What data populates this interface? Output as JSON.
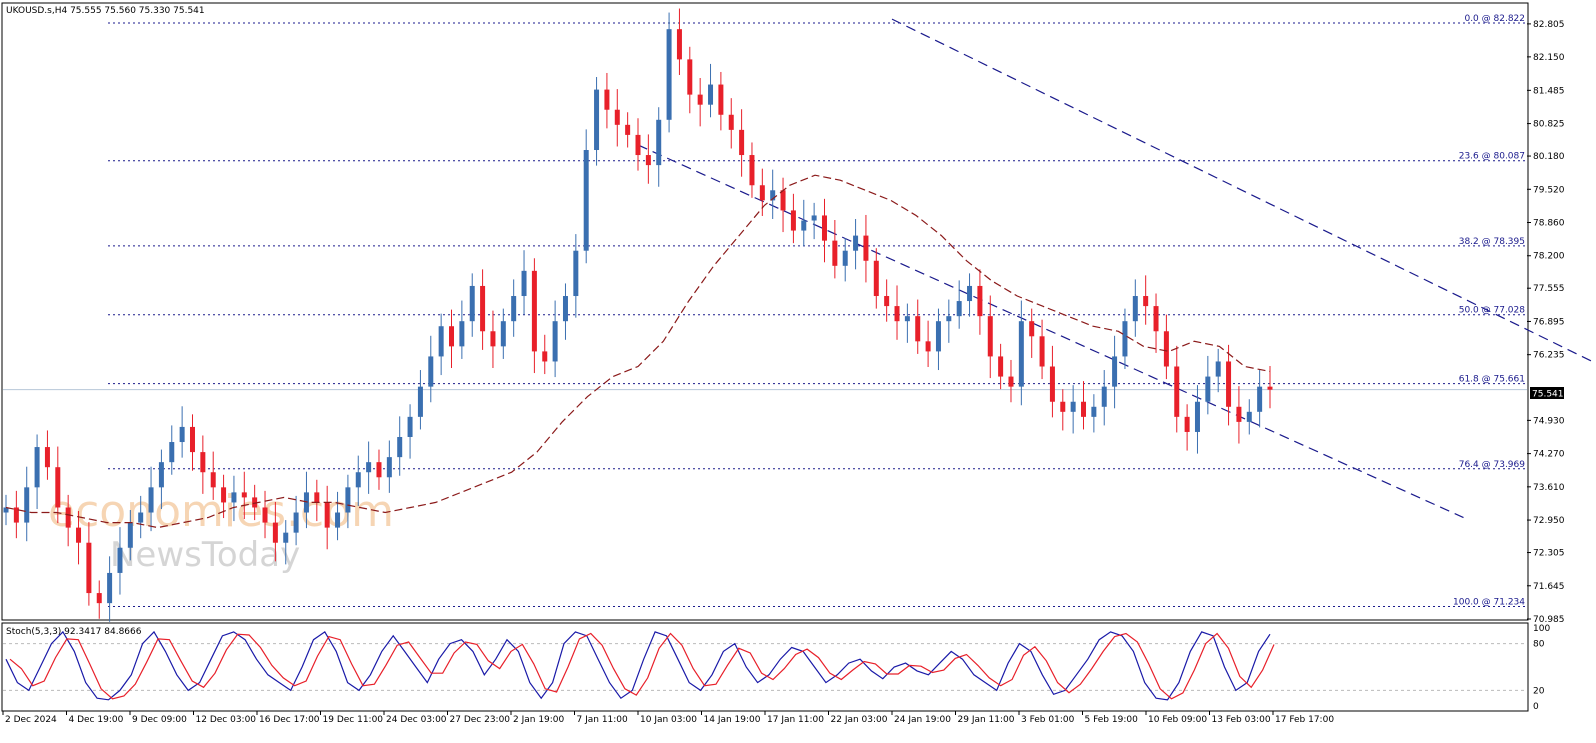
{
  "header": {
    "title": "UKOUSD.s,H4  75.555 75.560 75.330 75.541"
  },
  "stoch_label": "Stoch(5,3,3) 92.3417 84.8666",
  "current_price": "75.541",
  "watermark": {
    "line1": "economies.com",
    "line2": "NewsToday"
  },
  "colors": {
    "bull": "#3a6fb0",
    "bear": "#e8202a",
    "ma": "#8b1a1a",
    "channel": "#1a1a8c",
    "fib": "#1a1a8c",
    "stoch_main": "#1a1aa8",
    "stoch_signal": "#e8202a"
  },
  "chart_data": {
    "type": "candlestick",
    "symbol": "UKOUSD.s",
    "timeframe": "H4",
    "ohlc_last": {
      "open": 75.555,
      "high": 75.56,
      "low": 75.33,
      "close": 75.541
    },
    "y_ticks": [
      "82.805",
      "82.150",
      "81.485",
      "80.825",
      "80.180",
      "79.520",
      "78.860",
      "78.200",
      "77.555",
      "76.895",
      "76.235",
      "75.541",
      "74.930",
      "74.270",
      "73.610",
      "72.950",
      "72.305",
      "71.645",
      "70.985"
    ],
    "y_range": [
      70.985,
      83.2
    ],
    "x_ticks": [
      "2 Dec 2024",
      "4 Dec 19:00",
      "9 Dec 09:00",
      "12 Dec 03:00",
      "16 Dec 17:00",
      "19 Dec 11:00",
      "24 Dec 03:00",
      "27 Dec 23:00",
      "2 Jan 19:00",
      "7 Jan 11:00",
      "10 Jan 03:00",
      "14 Jan 19:00",
      "17 Jan 11:00",
      "22 Jan 03:00",
      "24 Jan 19:00",
      "29 Jan 11:00",
      "3 Feb 01:00",
      "5 Feb 19:00",
      "10 Feb 09:00",
      "13 Feb 03:00",
      "17 Feb 17:00"
    ],
    "fibonacci": [
      {
        "label": "0.0 @ 82.822",
        "value": 82.822
      },
      {
        "label": "23.6 @ 80.087",
        "value": 80.087
      },
      {
        "label": "38.2 @ 78.395",
        "value": 78.395
      },
      {
        "label": "50.0 @ 77.028",
        "value": 77.028
      },
      {
        "label": "61.8 @ 75.661",
        "value": 75.661
      },
      {
        "label": "76.4 @ 73.969",
        "value": 73.969
      },
      {
        "label": "100.0 @ 71.234",
        "value": 71.234
      }
    ],
    "price_path": [
      73.2,
      72.9,
      73.6,
      74.4,
      74.0,
      73.2,
      72.8,
      72.5,
      71.5,
      71.3,
      71.9,
      72.4,
      72.9,
      73.1,
      73.6,
      74.1,
      74.5,
      74.8,
      74.3,
      73.9,
      73.6,
      73.3,
      73.5,
      73.4,
      73.2,
      72.9,
      72.5,
      72.7,
      73.1,
      73.5,
      73.3,
      72.8,
      73.1,
      73.6,
      73.9,
      74.1,
      73.8,
      74.2,
      74.6,
      75.0,
      75.6,
      76.2,
      76.8,
      76.4,
      76.9,
      77.6,
      76.7,
      76.4,
      76.9,
      77.4,
      77.9,
      76.3,
      76.1,
      76.9,
      77.4,
      78.3,
      80.3,
      81.5,
      81.1,
      80.8,
      80.6,
      80.2,
      80.0,
      80.9,
      82.7,
      82.1,
      81.4,
      81.2,
      81.6,
      81.0,
      80.7,
      80.2,
      79.6,
      79.3,
      79.5,
      79.1,
      78.7,
      78.9,
      79.0,
      78.5,
      78.0,
      78.3,
      78.6,
      78.1,
      77.4,
      77.2,
      76.9,
      77.0,
      76.5,
      76.3,
      76.9,
      77.0,
      77.3,
      77.6,
      77.0,
      76.2,
      75.8,
      75.6,
      76.9,
      76.6,
      76.0,
      75.3,
      75.1,
      75.3,
      75.0,
      75.2,
      75.6,
      76.2,
      76.9,
      77.4,
      77.2,
      76.7,
      76.0,
      75.0,
      74.7,
      75.3,
      75.8,
      76.1,
      75.2,
      74.9,
      75.1,
      75.6,
      75.54
    ],
    "moving_average_path": [
      73.2,
      73.1,
      73.1,
      73.0,
      72.9,
      72.9,
      72.8,
      72.9,
      73.0,
      73.2,
      73.3,
      73.4,
      73.3,
      73.3,
      73.2,
      73.1,
      73.2,
      73.3,
      73.5,
      73.7,
      73.9,
      74.3,
      74.9,
      75.4,
      75.8,
      76.0,
      76.5,
      77.3,
      78.0,
      78.6,
      79.2,
      79.6,
      79.8,
      79.7,
      79.5,
      79.3,
      79.0,
      78.6,
      78.1,
      77.7,
      77.4,
      77.2,
      77.0,
      76.8,
      76.7,
      76.4,
      76.3,
      76.5,
      76.4,
      76.0,
      75.9
    ],
    "channel_upper": [
      [
        14,
        82.9
      ],
      [
        26,
        75.5
      ]
    ],
    "channel_lower": [
      [
        10,
        80.4
      ],
      [
        23,
        73.0
      ]
    ],
    "stochastic": {
      "k": 92.3417,
      "d": 84.8666,
      "levels": [
        0,
        20,
        80,
        100
      ],
      "k_path": [
        60,
        30,
        20,
        50,
        80,
        95,
        70,
        30,
        10,
        8,
        20,
        40,
        80,
        95,
        70,
        40,
        20,
        30,
        60,
        90,
        95,
        85,
        60,
        40,
        30,
        20,
        50,
        85,
        95,
        70,
        30,
        20,
        40,
        70,
        90,
        70,
        50,
        30,
        60,
        80,
        85,
        70,
        40,
        60,
        85,
        70,
        30,
        10,
        30,
        80,
        95,
        90,
        60,
        30,
        10,
        20,
        60,
        95,
        90,
        60,
        30,
        20,
        40,
        70,
        80,
        50,
        30,
        40,
        60,
        75,
        70,
        50,
        30,
        40,
        55,
        60,
        45,
        35,
        50,
        55,
        45,
        40,
        55,
        70,
        60,
        40,
        30,
        20,
        55,
        80,
        70,
        40,
        15,
        20,
        40,
        60,
        85,
        95,
        90,
        70,
        30,
        10,
        8,
        30,
        70,
        95,
        90,
        50,
        20,
        30,
        70,
        92
      ]
    }
  }
}
